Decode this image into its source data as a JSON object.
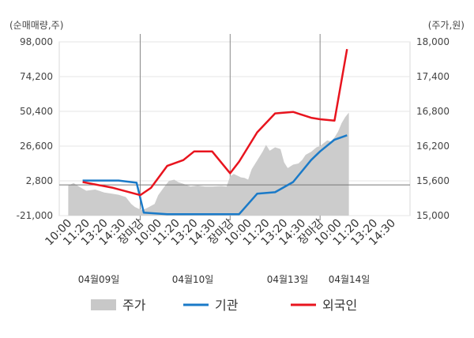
{
  "chart_data": {
    "type": "line",
    "left_unit": "(순매매량,주)",
    "right_unit": "(주가,원)",
    "left_ticks": [
      98000,
      74200,
      50400,
      26600,
      2800,
      -21000
    ],
    "left_tick_labels": [
      "98,000",
      "74,200",
      "50,400",
      "26,600",
      "2,800",
      "-21,000"
    ],
    "right_ticks": [
      18000,
      17400,
      16800,
      16200,
      15600,
      15000
    ],
    "right_tick_labels": [
      "18,000",
      "17,400",
      "16,800",
      "16,200",
      "15,600",
      "15,000"
    ],
    "ylim_left": [
      -21000,
      98000
    ],
    "ylim_right": [
      15000,
      18000
    ],
    "x_labels": [
      "10:00",
      "11:20",
      "13:20",
      "14:30",
      "장마감",
      "10:00",
      "11:20",
      "13:20",
      "14:30",
      "장마감",
      "10:00",
      "11:20",
      "13:20",
      "14:30",
      "장마감",
      "10:00",
      "11:20",
      "13:20",
      "14:30"
    ],
    "close_label": "장마감",
    "close_color": "#dd0000",
    "days": [
      "04월09일",
      "04월10일",
      "04월13일",
      "04월14일"
    ],
    "legend": [
      {
        "name": "주가",
        "color": "#c8c8c8",
        "kind": "area"
      },
      {
        "name": "기관",
        "color": "#1a7ac8",
        "kind": "line"
      },
      {
        "name": "외국인",
        "color": "#e8141e",
        "kind": "line"
      }
    ],
    "series": [
      {
        "name": "기관",
        "color": "#1a7ac8",
        "x": [
          0.8,
          2.8,
          3.8,
          4.2,
          5.5,
          8.0,
          9.0,
          9.5,
          10.5,
          11.5,
          12.5,
          13.5,
          14.0,
          14.8,
          15.5
        ],
        "values": [
          3000,
          3000,
          1500,
          -19000,
          -20000,
          -20000,
          -20000,
          -20000,
          -6000,
          -5000,
          2000,
          17000,
          23000,
          31000,
          34000
        ]
      },
      {
        "name": "외국인",
        "color": "#e8141e",
        "x": [
          0.8,
          2.5,
          4.0,
          4.6,
          5.5,
          6.4,
          7.0,
          8.0,
          9.0,
          9.5,
          10.5,
          11.5,
          12.5,
          13.5,
          14.0,
          14.8,
          15.5
        ],
        "values": [
          2000,
          -2000,
          -7000,
          -2000,
          13000,
          17000,
          23000,
          23000,
          8000,
          16000,
          36000,
          49000,
          50000,
          46000,
          45000,
          44000,
          93000
        ]
      }
    ],
    "price_series": {
      "name": "주가",
      "x": [
        0.0,
        0.3,
        0.6,
        1.0,
        1.5,
        2.0,
        2.4,
        2.8,
        3.2,
        3.5,
        3.7,
        3.9,
        4.1,
        4.3,
        4.5,
        4.8,
        5.0,
        5.3,
        5.6,
        5.9,
        6.1,
        6.4,
        6.8,
        7.2,
        7.6,
        8.0,
        8.5,
        8.8,
        9.0,
        9.2,
        9.4,
        9.6,
        9.8,
        10.0,
        10.2,
        10.5,
        10.8,
        11.0,
        11.2,
        11.5,
        11.8,
        12.0,
        12.2,
        12.5,
        12.8,
        13.0,
        13.2,
        13.5,
        13.8,
        14.0,
        14.2,
        14.4,
        14.6,
        14.8,
        15.0,
        15.2,
        15.4,
        15.6
      ],
      "values": [
        15520,
        15560,
        15500,
        15430,
        15450,
        15400,
        15380,
        15360,
        15320,
        15200,
        15150,
        15120,
        15100,
        15120,
        15150,
        15200,
        15350,
        15480,
        15600,
        15620,
        15580,
        15550,
        15500,
        15520,
        15500,
        15500,
        15510,
        15500,
        15680,
        15720,
        15690,
        15660,
        15650,
        15620,
        15800,
        15950,
        16100,
        16220,
        16120,
        16180,
        16150,
        15920,
        15820,
        15880,
        15900,
        15960,
        16050,
        16100,
        16180,
        16200,
        16250,
        16300,
        16280,
        16350,
        16450,
        16600,
        16700,
        16780
      ]
    },
    "x_slots": 19,
    "xlabel": "",
    "ylabel": "",
    "grid": true,
    "legend_position": "bottom"
  }
}
